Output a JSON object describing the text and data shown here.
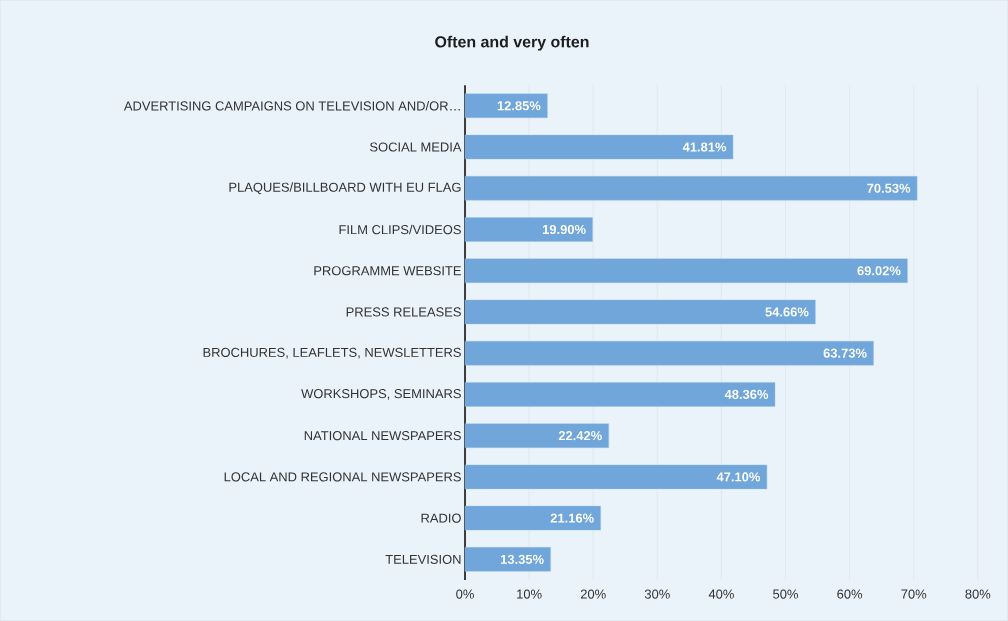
{
  "chart_data": {
    "type": "bar",
    "orientation": "horizontal",
    "title": "Often and very often",
    "categories": [
      "ADVERTISING CAMPAIGNS ON TELEVISION AND/OR…",
      "SOCIAL MEDIA",
      "PLAQUES/BILLBOARD WITH EU FLAG",
      "FILM CLIPS/VIDEOS",
      "PROGRAMME WEBSITE",
      "PRESS RELEASES",
      "BROCHURES, LEAFLETS, NEWSLETTERS",
      "WORKSHOPS, SEMINARS",
      "NATIONAL NEWSPAPERS",
      "LOCAL AND REGIONAL NEWSPAPERS",
      "RADIO",
      "TELEVISION"
    ],
    "values": [
      12.85,
      41.81,
      70.53,
      19.9,
      69.02,
      54.66,
      63.73,
      48.36,
      22.42,
      47.1,
      21.16,
      13.35
    ],
    "value_labels": [
      "12.85%",
      "41.81%",
      "70.53%",
      "19.90%",
      "69.02%",
      "54.66%",
      "63.73%",
      "48.36%",
      "22.42%",
      "47.10%",
      "21.16%",
      "13.35%"
    ],
    "color": "#70a6da",
    "xlim": [
      0,
      80
    ],
    "xticks": [
      {
        "value": 0,
        "label": "0%"
      },
      {
        "value": 10,
        "label": "10%"
      },
      {
        "value": 20,
        "label": "20%"
      },
      {
        "value": 30,
        "label": "30%"
      },
      {
        "value": 40,
        "label": "40%"
      },
      {
        "value": 50,
        "label": "50%"
      },
      {
        "value": 60,
        "label": "60%"
      },
      {
        "value": 70,
        "label": "70%"
      },
      {
        "value": 80,
        "label": "80%"
      }
    ],
    "grid": "x"
  }
}
